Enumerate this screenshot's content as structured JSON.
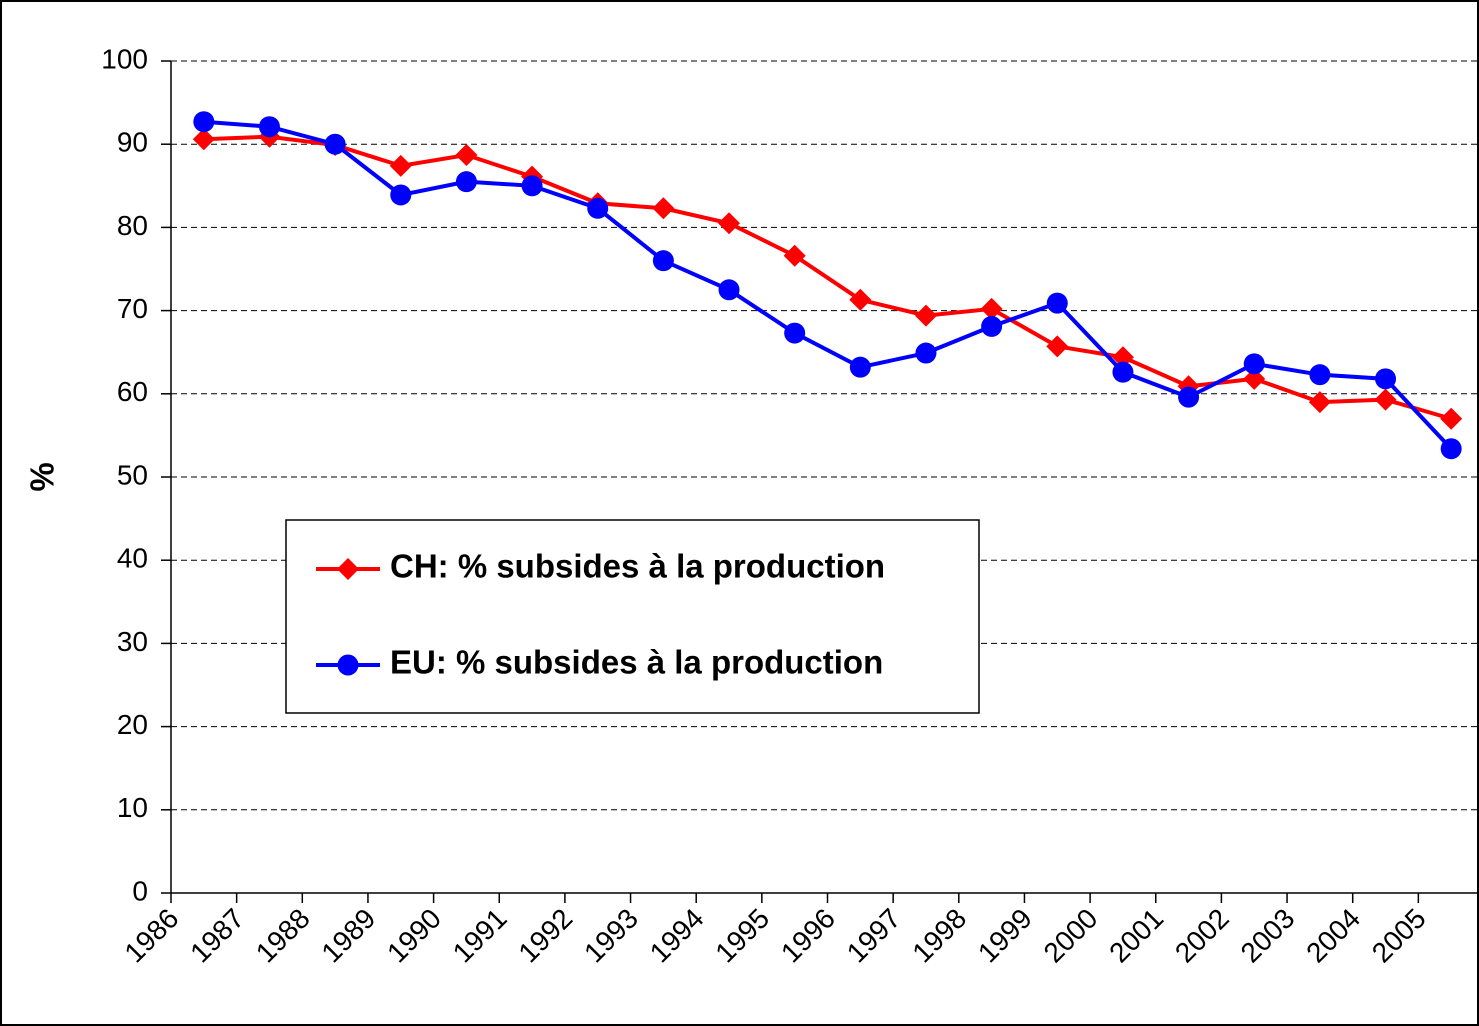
{
  "chart_data": {
    "type": "line",
    "y_label": "%",
    "categories": [
      "1986",
      "1987",
      "1988",
      "1989",
      "1990",
      "1991",
      "1992",
      "1993",
      "1994",
      "1995",
      "1996",
      "1997",
      "1998",
      "1999",
      "2000",
      "2001",
      "2002",
      "2003",
      "2004",
      "2005"
    ],
    "series": [
      {
        "name": "CH: % subsides à la production",
        "color": "#ff0000",
        "marker": "diamond",
        "values": [
          90.6,
          90.9,
          89.9,
          87.4,
          88.7,
          86.1,
          82.9,
          82.3,
          80.5,
          76.6,
          71.3,
          69.4,
          70.2,
          65.7,
          64.4,
          60.9,
          61.8,
          59.0,
          59.3,
          57.0
        ]
      },
      {
        "name": "EU: % subsides à la production",
        "color": "#0000ff",
        "marker": "circle",
        "values": [
          92.7,
          92.1,
          90.0,
          83.9,
          85.5,
          85.0,
          82.3,
          76.0,
          72.5,
          67.3,
          63.2,
          64.9,
          68.1,
          70.9,
          62.6,
          59.6,
          63.6,
          62.3,
          61.8,
          53.4
        ]
      }
    ],
    "ylim": [
      0,
      100
    ],
    "yticks": [
      0,
      10,
      20,
      30,
      40,
      50,
      60,
      70,
      80,
      90,
      100
    ],
    "grid": true
  }
}
